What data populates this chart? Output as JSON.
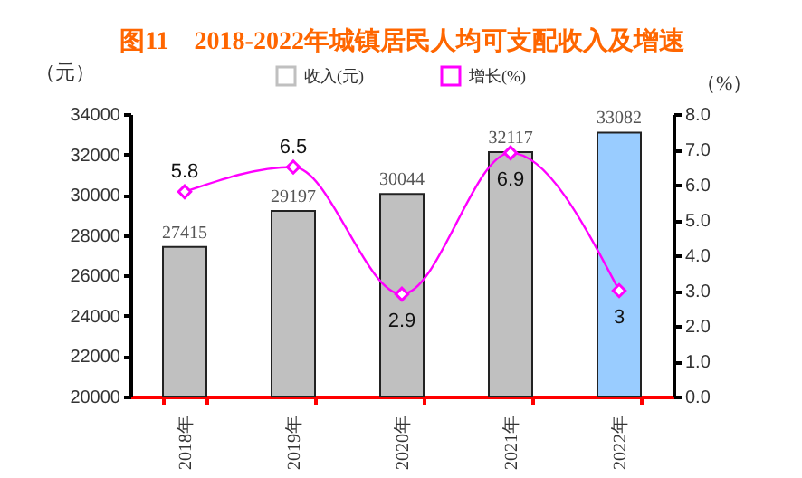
{
  "chart_data": {
    "type": "bar",
    "title": "图11　2018-2022年城镇居民人均可支配收入及增速",
    "ylabel": "（元）",
    "y2label": "（%）",
    "categories": [
      "2018年",
      "2019年",
      "2020年",
      "2021年",
      "2022年"
    ],
    "series": [
      {
        "name": "收入(元)",
        "color": "#c0c0c0",
        "colors": [
          "#c0c0c0",
          "#c0c0c0",
          "#c0c0c0",
          "#c0c0c0",
          "#99ccff"
        ],
        "values": [
          27415,
          29197,
          30044,
          32117,
          33082
        ]
      },
      {
        "name": "增长(%)",
        "type": "line",
        "axis": "y2",
        "color": "#ff00ff",
        "marker": "diamond",
        "values": [
          5.8,
          6.5,
          2.9,
          6.9,
          3
        ]
      }
    ],
    "ylim": [
      20000,
      34000
    ],
    "yticks": [
      20000,
      22000,
      24000,
      26000,
      28000,
      30000,
      32000,
      34000
    ],
    "y2lim": [
      0,
      8
    ],
    "y2ticks": [
      {
        "value": 0,
        "label": "0.0"
      },
      {
        "value": 1,
        "label": "1.0"
      },
      {
        "value": 2,
        "label": "2.0"
      },
      {
        "value": 3,
        "label": "3.0"
      },
      {
        "value": 4,
        "label": "4.0"
      },
      {
        "value": 5,
        "label": "5.0"
      },
      {
        "value": 6,
        "label": "6.0"
      },
      {
        "value": 7,
        "label": "7.0"
      },
      {
        "value": 8,
        "label": "8.0"
      }
    ],
    "data_labels": true,
    "grid": false,
    "legend": "top"
  }
}
